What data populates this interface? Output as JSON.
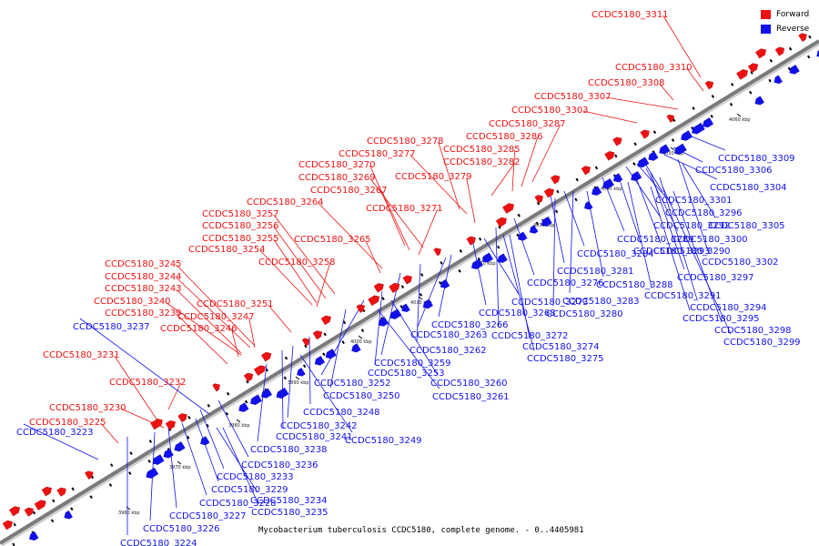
{
  "legend": {
    "forward": {
      "label": "Forward",
      "color": "#ee1111"
    },
    "reverse": {
      "label": "Reverse",
      "color": "#1111ee"
    }
  },
  "caption": "Mycobacterium tuberculosis CCDC5180, complete genome. - 0..4405981",
  "axis": {
    "ticks": [
      "3960 kbp",
      "3970 kbp",
      "3980 kbp",
      "3990 kbp",
      "4000 kbp",
      "4010 kbp",
      "4020 kbp",
      "4030 kbp",
      "4040 kbp",
      "4050 kbp",
      "4060 kbp"
    ]
  },
  "forward_labels": [
    "CCDC5180_3311",
    "CCDC5180_3310",
    "CCDC5180_3308",
    "CCDC5180_3307",
    "CCDC5180_3303",
    "CCDC5180_3287",
    "CCDC5180_3286",
    "CCDC5180_3285",
    "CCDC5180_3282",
    "CCDC5180_3279",
    "CCDC5180_3278",
    "CCDC5180_3277",
    "CCDC5180_3270",
    "CCDC5180_3269",
    "CCDC5180_3267",
    "CCDC5180_3271",
    "CCDC5180_3264",
    "CCDC5180_3257",
    "CCDC5180_3256",
    "CCDC5180_3255",
    "CCDC5180_3265",
    "CCDC5180_3254",
    "CCDC5180_3258",
    "CCDC5180_3245",
    "CCDC5180_3244",
    "CCDC5180_3243",
    "CCDC5180_3240",
    "CCDC5180_3251",
    "CCDC5180_3239",
    "CCDC5180_3247",
    "CCDC5180_3246",
    "CCDC5180_3231",
    "CCDC5180_3232",
    "CCDC5180_3230",
    "CCDC5180_3225"
  ],
  "reverse_labels": [
    "CCDC5180_3309",
    "CCDC5180_3306",
    "CCDC5180_3304",
    "CCDC5180_3301",
    "CCDC5180_3296",
    "CCDC5180_3305",
    "CCDC5180_3292",
    "CCDC5180_3300",
    "CCDC5180_3289",
    "CCDC5180_3293",
    "CCDC5180_3290",
    "CCDC5180_3302",
    "CCDC5180_3284",
    "CCDC5180_3297",
    "CCDC5180_3281",
    "CCDC5180_3276",
    "CCDC5180_3288",
    "CCDC5180_3291",
    "CCDC5180_3283",
    "CCDC5180_3294",
    "CCDC5180_3273",
    "CCDC5180_3280",
    "CCDC5180_3295",
    "CCDC5180_3268",
    "CCDC5180_3298",
    "CCDC5180_3266",
    "CCDC5180_3299",
    "CCDC5180_3272",
    "CCDC5180_3263",
    "CCDC5180_3274",
    "CCDC5180_3262",
    "CCDC5180_3275",
    "CCDC5180_3259",
    "CCDC5180_3253",
    "CCDC5180_3252",
    "CCDC5180_3260",
    "CCDC5180_3250",
    "CCDC5180_3261",
    "CCDC5180_3248",
    "CCDC5180_3242",
    "CCDC5180_3241",
    "CCDC5180_3249",
    "CCDC5180_3238",
    "CCDC5180_3236",
    "CCDC5180_3233",
    "CCDC5180_3229",
    "CCDC5180_3228",
    "CCDC5180_3234",
    "CCDC5180_3227",
    "CCDC5180_3235",
    "CCDC5180_3226",
    "CCDC5180_3224",
    "CCDC5180_3237",
    "CCDC5180_3223"
  ]
}
